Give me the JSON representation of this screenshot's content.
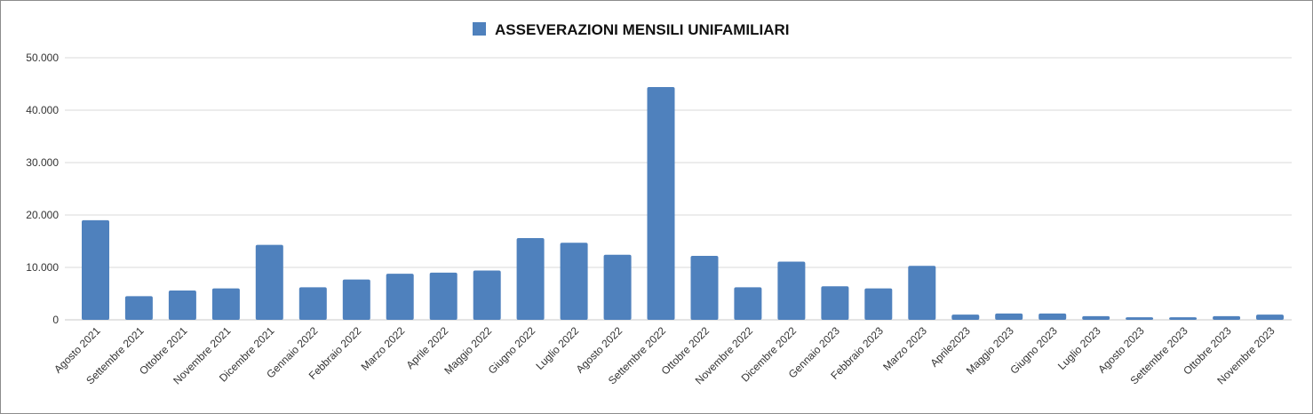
{
  "chart_data": {
    "type": "bar",
    "legend": {
      "position": "top-center",
      "entries": [
        {
          "label": "ASSEVERAZIONI MENSILI UNIFAMILIARI",
          "color": "#4f81bd"
        }
      ]
    },
    "grid": true,
    "ylim": [
      0,
      50000
    ],
    "yticks": [
      0,
      10000,
      20000,
      30000,
      40000,
      50000
    ],
    "ytick_labels": [
      "0",
      "10.000",
      "20.000",
      "30.000",
      "40.000",
      "50.000"
    ],
    "categories": [
      "Agosto 2021",
      "Settembre 2021",
      "Ottobre 2021",
      "Novembre 2021",
      "Dicembre 2021",
      "Gennaio 2022",
      "Febbraio 2022",
      "Marzo 2022",
      "Aprile 2022",
      "Maggio 2022",
      "Giugno 2022",
      "Luglio 2022",
      "Agosto 2022",
      "Settembre 2022",
      "Ottobre 2022",
      "Novembre 2022",
      "Dicembre 2022",
      "Gennaio 2023",
      "Febbraio 2023",
      "Marzo 2023",
      "Aprile2023",
      "Maggio 2023",
      "Giugno 2023",
      "Luglio 2023",
      "Agosto 2023",
      "Settembre 2023",
      "Ottobre 2023",
      "Novembre 2023"
    ],
    "series": [
      {
        "name": "ASSEVERAZIONI MENSILI UNIFAMILIARI",
        "color": "#4f81bd",
        "values": [
          19000,
          4500,
          5600,
          6000,
          14300,
          6200,
          7700,
          8800,
          9000,
          9400,
          15600,
          14700,
          12400,
          44400,
          12200,
          6200,
          11100,
          6400,
          6000,
          10300,
          1000,
          1200,
          1200,
          700,
          500,
          500,
          700,
          1000
        ]
      }
    ]
  }
}
